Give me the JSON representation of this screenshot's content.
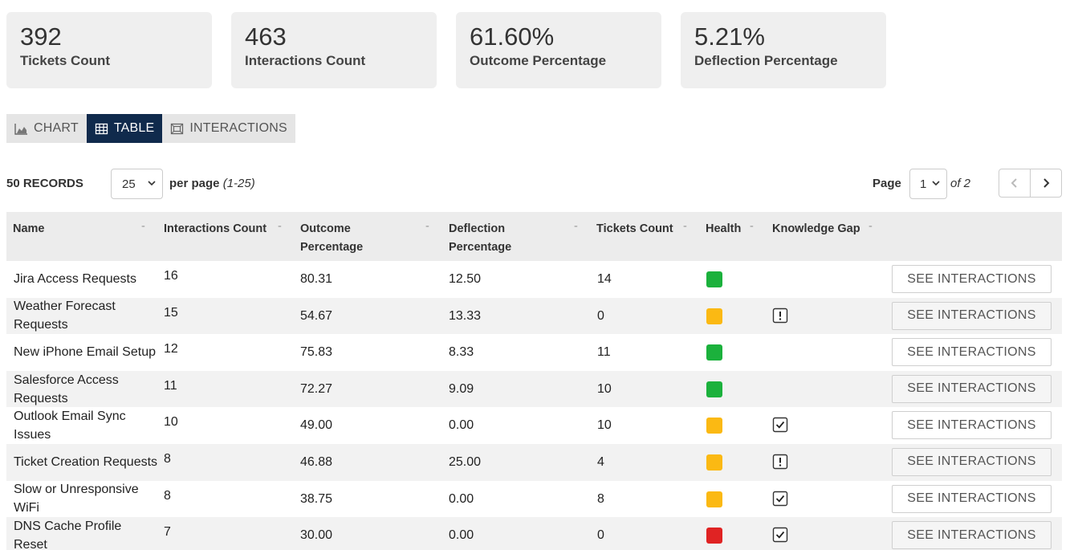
{
  "summary": [
    {
      "value": "392",
      "label": "Tickets Count"
    },
    {
      "value": "463",
      "label": "Interactions Count"
    },
    {
      "value": "61.60%",
      "label": "Outcome Percentage"
    },
    {
      "value": "5.21%",
      "label": "Deflection Percentage"
    }
  ],
  "tabs": [
    {
      "label": "CHART",
      "icon": "area-chart-icon",
      "active": false
    },
    {
      "label": "TABLE",
      "icon": "table-icon",
      "active": true
    },
    {
      "label": "INTERACTIONS",
      "icon": "interactions-icon",
      "active": false
    }
  ],
  "toolbar": {
    "records_label": "50 RECORDS",
    "per_page_value": "25",
    "per_page_label": "per page",
    "per_page_range": "(1-25)",
    "page_label": "Page",
    "page_value": "1",
    "page_of": "of 2"
  },
  "table": {
    "headers": {
      "name": "Name",
      "interactions": "Interactions Count",
      "outcome_1": "Outcome",
      "outcome_2": "Percentage",
      "deflection_1": "Deflection",
      "deflection_2": "Percentage",
      "tickets": "Tickets Count",
      "health": "Health",
      "gap": "Knowledge Gap"
    },
    "sort_indicator": "-",
    "button_label": "SEE INTERACTIONS",
    "rows": [
      {
        "name": "Jira Access Requests",
        "interactions": "16",
        "outcome": "80.31",
        "deflection": "12.50",
        "tickets": "14",
        "health": "green",
        "gap": "none"
      },
      {
        "name": "Weather Forecast Requests",
        "interactions": "15",
        "outcome": "54.67",
        "deflection": "13.33",
        "tickets": "0",
        "health": "yellow",
        "gap": "alert"
      },
      {
        "name": "New iPhone Email Setup",
        "interactions": "12",
        "outcome": "75.83",
        "deflection": "8.33",
        "tickets": "11",
        "health": "green",
        "gap": "none"
      },
      {
        "name": "Salesforce Access Requests",
        "interactions": "11",
        "outcome": "72.27",
        "deflection": "9.09",
        "tickets": "10",
        "health": "green",
        "gap": "none"
      },
      {
        "name": "Outlook Email Sync Issues",
        "interactions": "10",
        "outcome": "49.00",
        "deflection": "0.00",
        "tickets": "10",
        "health": "yellow",
        "gap": "check"
      },
      {
        "name": "Ticket Creation Requests",
        "interactions": "8",
        "outcome": "46.88",
        "deflection": "25.00",
        "tickets": "4",
        "health": "yellow",
        "gap": "alert"
      },
      {
        "name": "Slow or Unresponsive WiFi",
        "interactions": "8",
        "outcome": "38.75",
        "deflection": "0.00",
        "tickets": "8",
        "health": "yellow",
        "gap": "check"
      },
      {
        "name": "DNS Cache Profile Reset",
        "interactions": "7",
        "outcome": "30.00",
        "deflection": "0.00",
        "tickets": "0",
        "health": "red",
        "gap": "check"
      }
    ]
  },
  "colors": {
    "green": "#1bb13c",
    "yellow": "#fbb913",
    "red": "#e02323",
    "active_tab": "#102a4c"
  }
}
